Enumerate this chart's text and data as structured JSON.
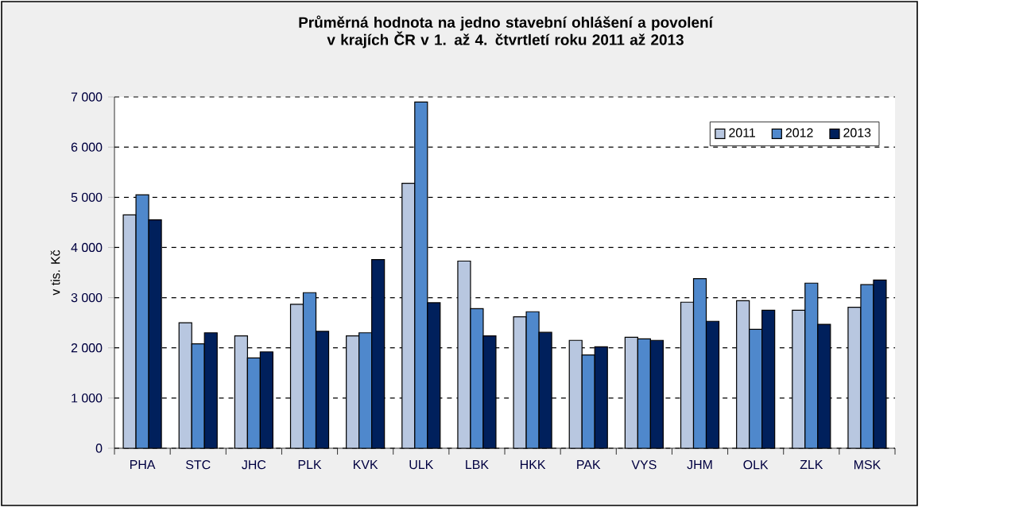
{
  "chart_data": {
    "type": "bar",
    "title": "Průměrná hodnota na jedno stavební ohlášení a povolení v krajích ČR v 1. až 4. čtvrtletí roku 2011 až 2013",
    "ylabel": "v tis. Kč",
    "categories": [
      "PHA",
      "STC",
      "JHC",
      "PLK",
      "KVK",
      "ULK",
      "LBK",
      "HKK",
      "PAK",
      "VYS",
      "JHM",
      "OLK",
      "ZLK",
      "MSK"
    ],
    "series": [
      {
        "name": "2011",
        "color": "#b8c7e0",
        "values": [
          4650,
          2500,
          2240,
          2870,
          2240,
          5280,
          3730,
          2620,
          2150,
          2210,
          2910,
          2940,
          2750,
          2810
        ]
      },
      {
        "name": "2012",
        "color": "#4f88cc",
        "values": [
          5050,
          2080,
          1800,
          3100,
          2300,
          6900,
          2780,
          2720,
          1860,
          2180,
          3380,
          2370,
          3290,
          3260
        ]
      },
      {
        "name": "2013",
        "color": "#00205c",
        "values": [
          4550,
          2300,
          1920,
          2330,
          3760,
          2900,
          2240,
          2310,
          2020,
          2150,
          2530,
          2750,
          2470,
          3350
        ]
      }
    ],
    "ylim": [
      0,
      7000
    ],
    "yticks": [
      0,
      {
        "value": 1000,
        "label": "1 000"
      },
      {
        "value": 2000,
        "label": "2 000"
      },
      {
        "value": 3000,
        "label": "3 000"
      },
      {
        "value": 4000,
        "label": "4 000"
      },
      {
        "value": 5000,
        "label": "5 000"
      },
      {
        "value": 6000,
        "label": "6 000"
      },
      {
        "value": 7000,
        "label": "7 000"
      }
    ],
    "grid": "y",
    "legend": "top right"
  }
}
